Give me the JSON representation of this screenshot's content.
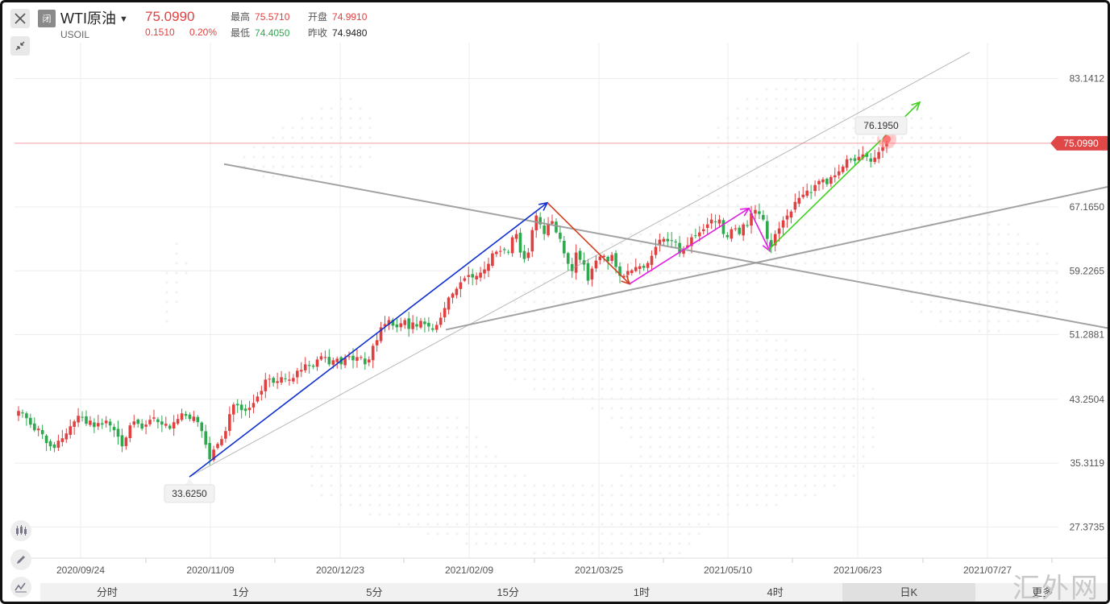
{
  "header": {
    "status_badge": "闭",
    "symbol_name": "WTI原油",
    "symbol_code": "USOIL",
    "last_price": "75.0990",
    "change": "0.1510",
    "change_percent": "0.20%",
    "stats": [
      {
        "label": "最高",
        "value": "75.5710",
        "color": "up"
      },
      {
        "label": "开盘",
        "value": "74.9910",
        "color": "up"
      },
      {
        "label": "最低",
        "value": "74.4050",
        "color": "dn"
      },
      {
        "label": "昨收",
        "value": "74.9480",
        "color": "blk"
      }
    ]
  },
  "icons": {
    "close": "close-icon",
    "shrink": "collapse-arrows-icon",
    "dropdown": "caret-down-icon",
    "tools": [
      "candlestick-type-icon",
      "pencil-draw-icon",
      "indicator-line-icon"
    ]
  },
  "tabs": [
    {
      "label": "分时",
      "active": false
    },
    {
      "label": "1分",
      "active": false
    },
    {
      "label": "5分",
      "active": false
    },
    {
      "label": "15分",
      "active": false
    },
    {
      "label": "1时",
      "active": false
    },
    {
      "label": "4时",
      "active": false
    },
    {
      "label": "日K",
      "active": true
    },
    {
      "label": "更多",
      "active": false
    }
  ],
  "watermark": "汇外网",
  "chart_data": {
    "type": "candlestick",
    "symbol": "WTI原油",
    "y_ticks": [
      83.1412,
      67.165,
      59.2265,
      51.2881,
      43.2504,
      35.3119,
      27.3735
    ],
    "y_tick_labels": [
      "83.1412",
      "67.1650",
      "59.2265",
      "51.2881",
      "43.2504",
      "35.3119",
      "27.3735"
    ],
    "ylim": [
      23.5,
      87.6
    ],
    "x_tick_labels": [
      "2020/09/24",
      "2020/11/09",
      "2020/12/23",
      "2021/02/09",
      "2021/03/25",
      "2021/05/10",
      "2021/06/23",
      "2021/07/27"
    ],
    "current_price_label": "75.0990",
    "current_price": 75.099,
    "annotations": [
      {
        "text": "33.6250",
        "value": 33.625,
        "kind": "low"
      },
      {
        "text": "76.1950",
        "value": 76.195,
        "kind": "high"
      }
    ],
    "grid": true,
    "colors": {
      "up": "#e04040",
      "down": "#2fa84f",
      "blue_arrow": "#1030d0",
      "red_arrow": "#d04020",
      "magenta_arrow": "#e020e0",
      "green_arrow": "#40d020",
      "trendline": "#999999",
      "price_line": "#f0a0a0"
    },
    "closes": [
      41.8,
      41.5,
      40.9,
      40.1,
      39.4,
      39.6,
      38.9,
      37.8,
      37.4,
      37.2,
      38.1,
      38.4,
      39.0,
      39.9,
      40.5,
      41.2,
      41.0,
      40.2,
      40.6,
      39.8,
      40.3,
      40.1,
      40.6,
      40.0,
      39.4,
      38.6,
      37.4,
      38.5,
      40.0,
      40.5,
      40.2,
      39.6,
      40.1,
      40.7,
      41.0,
      40.4,
      40.1,
      40.2,
      39.6,
      40.4,
      40.8,
      41.5,
      41.2,
      40.8,
      41.1,
      40.4,
      39.3,
      37.6,
      35.8,
      37.0,
      37.7,
      38.3,
      39.3,
      41.4,
      42.6,
      42.5,
      41.9,
      41.8,
      42.2,
      42.8,
      43.6,
      44.3,
      45.7,
      45.8,
      45.3,
      45.5,
      46.0,
      45.8,
      45.7,
      45.9,
      46.8,
      46.9,
      47.6,
      47.4,
      47.3,
      48.2,
      48.6,
      48.5,
      47.6,
      48.1,
      48.3,
      47.6,
      48.4,
      48.6,
      48.1,
      48.5,
      48.5,
      47.6,
      48.2,
      49.9,
      50.6,
      52.2,
      52.6,
      53.1,
      52.4,
      52.2,
      52.7,
      53.1,
      52.0,
      52.8,
      52.3,
      53.0,
      52.6,
      52.3,
      51.9,
      52.5,
      53.4,
      54.6,
      55.9,
      56.4,
      57.0,
      57.8,
      58.3,
      58.7,
      58.4,
      58.6,
      59.0,
      59.4,
      60.1,
      61.4,
      61.6,
      61.7,
      61.8,
      61.5,
      63.4,
      63.8,
      61.5,
      60.7,
      61.5,
      64.3,
      66.1,
      65.0,
      63.8,
      65.1,
      65.4,
      64.0,
      63.2,
      61.4,
      60.1,
      59.2,
      61.5,
      60.6,
      60.0,
      58.0,
      59.5,
      60.5,
      61.0,
      61.1,
      60.4,
      61.2,
      59.7,
      58.6,
      58.6,
      59.2,
      59.3,
      59.7,
      59.8,
      59.6,
      60.2,
      61.1,
      62.2,
      63.1,
      63.2,
      62.9,
      63.0,
      62.8,
      61.4,
      61.9,
      62.4,
      63.4,
      63.6,
      64.0,
      64.4,
      65.0,
      65.6,
      65.3,
      65.6,
      63.8,
      63.4,
      64.4,
      64.5,
      63.8,
      65.0,
      64.8,
      66.4,
      66.8,
      66.3,
      65.6,
      63.2,
      62.2,
      63.8,
      64.5,
      65.5,
      66.1,
      66.6,
      67.8,
      68.3,
      68.7,
      69.2,
      69.0,
      69.9,
      70.4,
      70.6,
      70.0,
      70.9,
      71.1,
      71.6,
      72.2,
      73.1,
      73.0,
      72.9,
      73.4,
      73.7,
      73.4,
      72.8,
      73.3,
      74.0,
      74.6,
      75.1
    ],
    "trendlines": [
      {
        "points": [
          [
            232,
            33.6
          ],
          [
            1200,
            86.4
          ]
        ],
        "style": "thin"
      },
      {
        "points": [
          [
            275,
            72.5
          ],
          [
            1377,
            52.0
          ]
        ],
        "style": "thick"
      },
      {
        "points": [
          [
            550,
            51.9
          ],
          [
            1377,
            69.8
          ]
        ],
        "style": "thick"
      }
    ],
    "arrows": [
      {
        "color": "blue_arrow",
        "from": [
          232,
          33.6
        ],
        "to": [
          676,
          67.7
        ]
      },
      {
        "color": "red_arrow",
        "from": [
          676,
          67.7
        ],
        "to": [
          778,
          57.6
        ]
      },
      {
        "color": "magenta_arrow",
        "from": [
          778,
          57.6
        ],
        "to": [
          926,
          67.0
        ]
      },
      {
        "color": "magenta_arrow",
        "from": [
          926,
          67.0
        ],
        "to": [
          952,
          61.7
        ]
      },
      {
        "color": "green_arrow",
        "from": [
          950,
          61.8
        ],
        "to": [
          1138,
          80.2
        ]
      }
    ]
  }
}
